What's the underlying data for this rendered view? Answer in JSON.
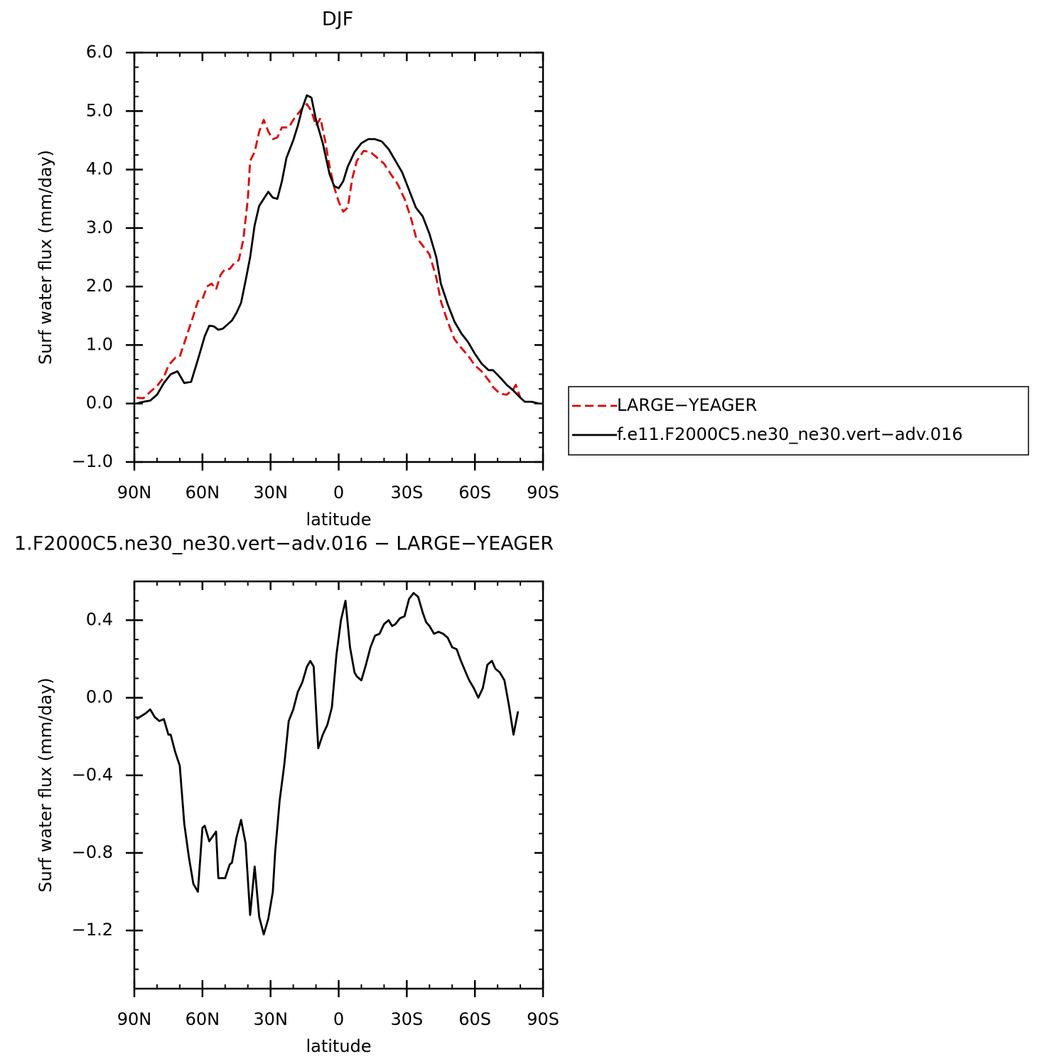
{
  "chart_data": [
    {
      "type": "line",
      "title": "DJF",
      "xlabel": "latitude",
      "ylabel": "Surf water flux (mm/day)",
      "xlim": [
        90,
        -90
      ],
      "xticks": [
        {
          "value": 90,
          "label": "90N"
        },
        {
          "value": 60,
          "label": "60N"
        },
        {
          "value": 30,
          "label": "30N"
        },
        0,
        {
          "value": -30,
          "label": "30S"
        },
        {
          "value": -60,
          "label": "60S"
        },
        {
          "value": -90,
          "label": "90S"
        }
      ],
      "ylim": [
        -1,
        6
      ],
      "yticks": [
        {
          "value": -1,
          "label": "−1.0"
        },
        {
          "value": 0,
          "label": "0.0"
        },
        {
          "value": 1,
          "label": "1.0"
        },
        {
          "value": 2,
          "label": "2.0"
        },
        {
          "value": 3,
          "label": "3.0"
        },
        {
          "value": 4,
          "label": "4.0"
        },
        {
          "value": 5,
          "label": "5.0"
        },
        {
          "value": 6,
          "label": "6.0"
        }
      ],
      "legend": "right",
      "series": [
        {
          "name": "LARGE−YEAGER",
          "color": "#e00000",
          "dash": true,
          "x": [
            89,
            86,
            83,
            80,
            77,
            75,
            72,
            70,
            67,
            64,
            62,
            60,
            58,
            56,
            54,
            52,
            50,
            48,
            46,
            44,
            42,
            40,
            39,
            37,
            35,
            33,
            31,
            29,
            27,
            25,
            22,
            20,
            18,
            16,
            14,
            12,
            10,
            8,
            6,
            4,
            2,
            0,
            -2,
            -4,
            -6,
            -8,
            -11,
            -14,
            -17,
            -20,
            -23,
            -26,
            -29,
            -32,
            -34,
            -37,
            -40,
            -43,
            -45,
            -48,
            -51,
            -54,
            -57,
            -60,
            -63,
            -66,
            -68,
            -71,
            -74,
            -77,
            -78,
            -80
          ],
          "values": [
            0.1,
            0.09,
            0.2,
            0.3,
            0.45,
            0.65,
            0.78,
            0.8,
            1.15,
            1.5,
            1.75,
            1.78,
            2.0,
            2.05,
            1.95,
            2.2,
            2.3,
            2.3,
            2.4,
            2.45,
            2.8,
            3.5,
            4.15,
            4.3,
            4.65,
            4.85,
            4.65,
            4.52,
            4.55,
            4.72,
            4.72,
            4.85,
            4.95,
            5.05,
            5.12,
            5.0,
            4.75,
            4.88,
            4.5,
            4.05,
            3.7,
            3.45,
            3.28,
            3.35,
            3.85,
            4.15,
            4.32,
            4.3,
            4.2,
            4.1,
            3.92,
            3.75,
            3.5,
            3.15,
            2.85,
            2.7,
            2.55,
            2.15,
            1.75,
            1.4,
            1.1,
            0.95,
            0.82,
            0.65,
            0.55,
            0.4,
            0.28,
            0.17,
            0.15,
            0.25,
            0.32,
            0.1
          ]
        },
        {
          "name": "f.e11.F2000C5.ne30_ne30.vert−adv.016",
          "color": "#000000",
          "dash": false,
          "x": [
            89,
            86,
            83,
            80,
            77,
            74,
            71,
            68,
            65,
            62,
            59,
            57,
            55,
            53,
            51,
            49,
            47,
            45,
            43,
            41,
            39,
            37,
            35,
            33,
            31,
            29,
            27,
            25,
            23,
            20,
            18,
            16,
            14,
            12,
            10,
            7,
            4,
            2,
            0,
            -2,
            -4,
            -7,
            -10,
            -13,
            -16,
            -19,
            -22,
            -25,
            -28,
            -31,
            -34,
            -37,
            -40,
            -43,
            -45,
            -48,
            -51,
            -54,
            -57,
            -60,
            -63,
            -66,
            -68,
            -71,
            -74,
            -77,
            -80,
            -82,
            -85,
            -88
          ],
          "values": [
            0.0,
            0.03,
            0.05,
            0.15,
            0.35,
            0.5,
            0.55,
            0.35,
            0.37,
            0.75,
            1.15,
            1.33,
            1.32,
            1.26,
            1.28,
            1.35,
            1.42,
            1.55,
            1.72,
            2.1,
            2.5,
            3.05,
            3.38,
            3.5,
            3.62,
            3.52,
            3.5,
            3.8,
            4.2,
            4.5,
            4.75,
            5.05,
            5.27,
            5.23,
            4.85,
            4.45,
            3.92,
            3.72,
            3.68,
            3.8,
            4.05,
            4.3,
            4.45,
            4.52,
            4.52,
            4.48,
            4.35,
            4.15,
            3.95,
            3.65,
            3.35,
            3.2,
            2.9,
            2.5,
            2.05,
            1.7,
            1.4,
            1.2,
            1.05,
            0.85,
            0.68,
            0.57,
            0.57,
            0.45,
            0.32,
            0.22,
            0.1,
            0.03,
            0.03,
            0.0
          ]
        }
      ]
    },
    {
      "type": "line",
      "title": "1.F2000C5.ne30_ne30.vert−adv.016 − LARGE−YEAGER",
      "xlabel": "latitude",
      "ylabel": "Surf water flux (mm/day)",
      "xlim": [
        90,
        -90
      ],
      "xticks": [
        {
          "value": 90,
          "label": "90N"
        },
        {
          "value": 60,
          "label": "60N"
        },
        {
          "value": 30,
          "label": "30N"
        },
        0,
        {
          "value": -30,
          "label": "30S"
        },
        {
          "value": -60,
          "label": "60S"
        },
        {
          "value": -90,
          "label": "90S"
        }
      ],
      "ylim": [
        -1.5,
        0.6
      ],
      "yticks": [
        {
          "value": -1.2,
          "label": "−1.2"
        },
        {
          "value": -0.8,
          "label": "−0.8"
        },
        {
          "value": -0.4,
          "label": "−0.4"
        },
        {
          "value": 0,
          "label": "0.0"
        },
        0.4
      ],
      "series": [
        {
          "color": "#000000",
          "dash": false,
          "x": [
            89,
            85,
            83,
            81,
            79,
            77,
            75,
            74,
            72,
            70,
            68,
            66,
            64,
            62,
            60,
            59,
            57,
            54,
            53,
            50,
            48,
            47,
            45,
            43,
            41,
            39,
            37,
            35,
            33,
            31,
            29,
            28,
            26,
            24,
            22,
            20,
            18,
            16,
            14,
            12.5,
            11,
            9,
            7,
            5,
            3,
            1,
            -1,
            -3,
            -5,
            -7,
            -8,
            -10,
            -12,
            -14,
            -16,
            -18,
            -20,
            -22,
            -23.5,
            -25,
            -27,
            -29,
            -31,
            -33,
            -35,
            -37,
            -38.5,
            -40,
            -42,
            -44,
            -46,
            -48,
            -50,
            -52,
            -53.5,
            -56,
            -57.5,
            -59.5,
            -61.5,
            -63.5,
            -65.5,
            -67.5,
            -69,
            -71,
            -73,
            -75,
            -77,
            -79
          ],
          "values": [
            -0.11,
            -0.08,
            -0.06,
            -0.1,
            -0.12,
            -0.11,
            -0.19,
            -0.19,
            -0.28,
            -0.35,
            -0.65,
            -0.82,
            -0.96,
            -1.0,
            -0.67,
            -0.66,
            -0.74,
            -0.69,
            -0.93,
            -0.93,
            -0.86,
            -0.85,
            -0.72,
            -0.63,
            -0.75,
            -1.12,
            -0.87,
            -1.13,
            -1.22,
            -1.14,
            -1.0,
            -0.8,
            -0.53,
            -0.35,
            -0.12,
            -0.06,
            0.03,
            0.08,
            0.16,
            0.19,
            0.16,
            -0.26,
            -0.19,
            -0.14,
            -0.05,
            0.22,
            0.4,
            0.5,
            0.26,
            0.13,
            0.11,
            0.09,
            0.17,
            0.26,
            0.32,
            0.33,
            0.38,
            0.4,
            0.37,
            0.38,
            0.41,
            0.42,
            0.51,
            0.54,
            0.52,
            0.44,
            0.39,
            0.37,
            0.33,
            0.34,
            0.33,
            0.31,
            0.26,
            0.25,
            0.2,
            0.13,
            0.09,
            0.05,
            0.0,
            0.05,
            0.17,
            0.19,
            0.15,
            0.13,
            0.09,
            -0.04,
            -0.19,
            -0.07
          ]
        }
      ]
    }
  ]
}
